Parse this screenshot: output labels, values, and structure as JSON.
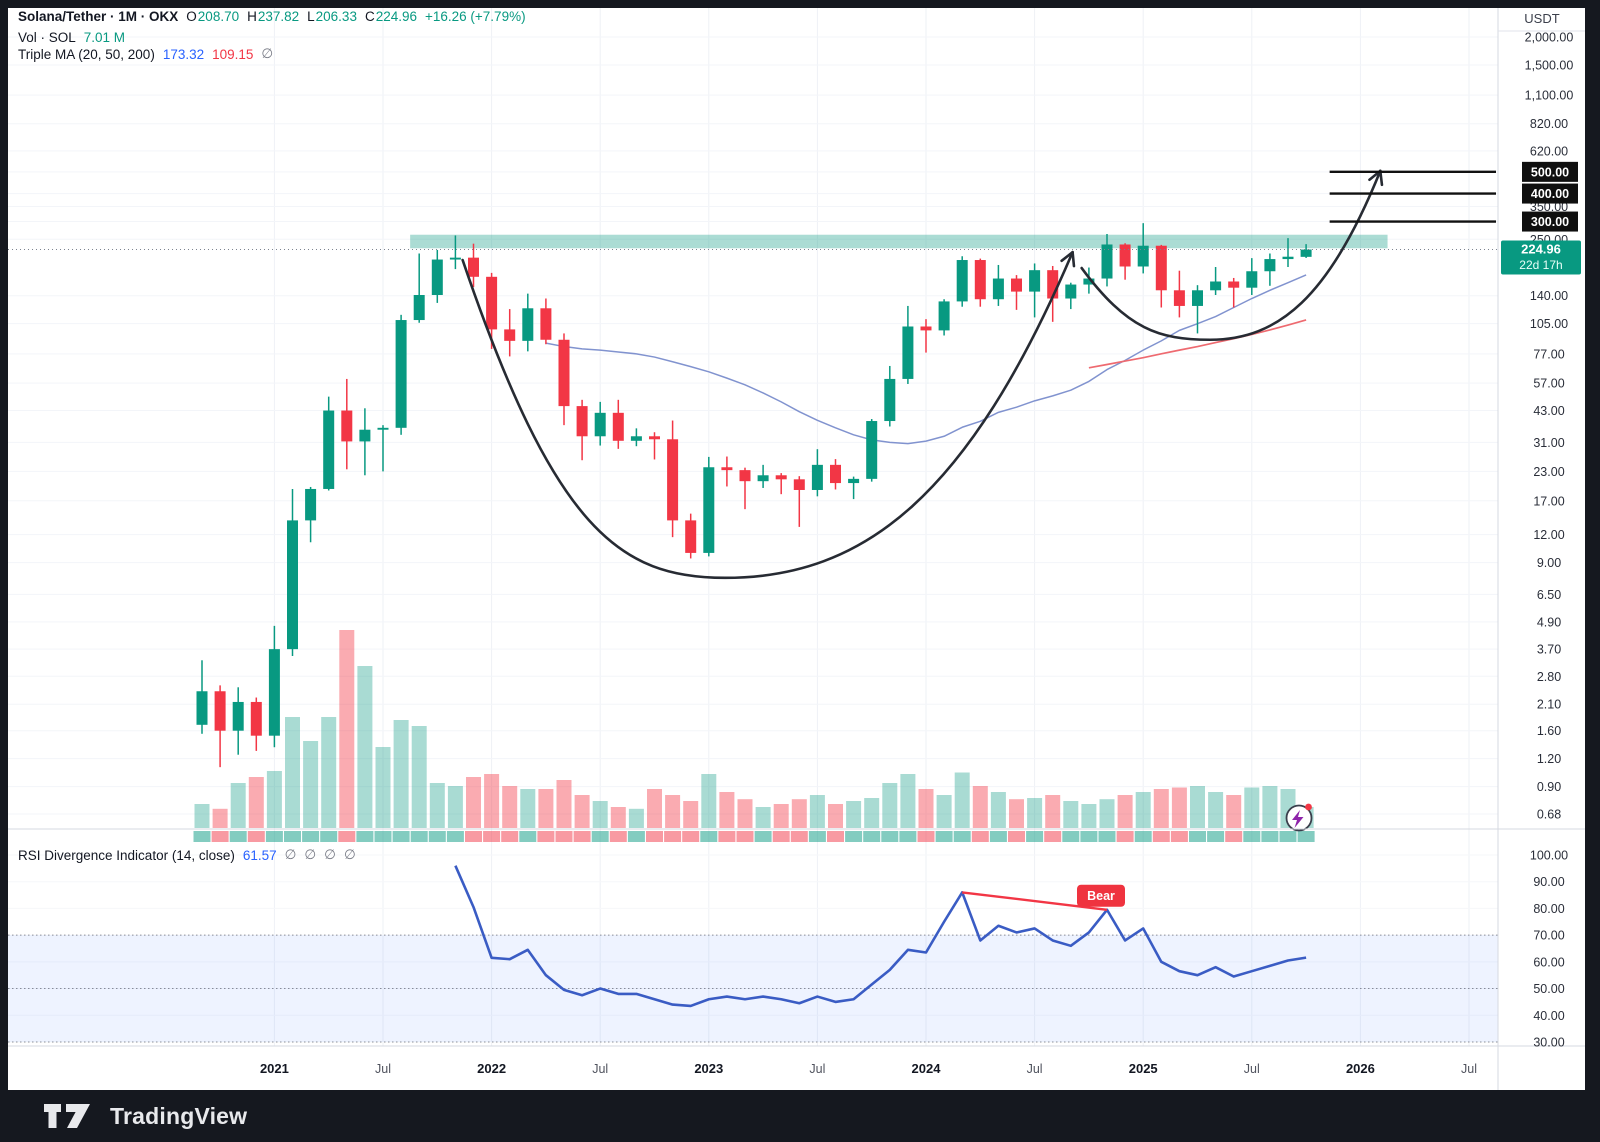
{
  "header": {
    "symbol_line": {
      "title": "Solana/Tether · 1M · OKX",
      "o_label": "O",
      "o_value": "208.70",
      "h_label": "H",
      "h_value": "237.82",
      "l_label": "L",
      "l_value": "206.33",
      "c_label": "C",
      "c_value": "224.96",
      "change": "+16.26 (+7.79%)"
    },
    "volume_line": {
      "label": "Vol · SOL",
      "value": "7.01 M"
    },
    "ma_line": {
      "label": "Triple MA (20, 50, 200)",
      "ma20": "173.32",
      "ma50": "109.15",
      "ma200": "∅"
    }
  },
  "rsi_pane": {
    "legend_label": "RSI Divergence Indicator (14, close)",
    "legend_value": "61.57",
    "empty_values": [
      "∅",
      "∅",
      "∅",
      "∅"
    ],
    "bear_label": "Bear",
    "band_high": 70,
    "band_mid": 50,
    "band_low": 30,
    "axis_ticks": [
      {
        "v": 100,
        "label": "100.00"
      },
      {
        "v": 90,
        "label": "90.00"
      },
      {
        "v": 80,
        "label": "80.00"
      },
      {
        "v": 70,
        "label": "70.00"
      },
      {
        "v": 60,
        "label": "60.00"
      },
      {
        "v": 50,
        "label": "50.00"
      },
      {
        "v": 40,
        "label": "40.00"
      },
      {
        "v": 30,
        "label": "30.00"
      }
    ]
  },
  "price_axis": {
    "currency": "USDT",
    "ticks": [
      {
        "v": 2000,
        "label": "2,000.00"
      },
      {
        "v": 1500,
        "label": "1,500.00"
      },
      {
        "v": 1100,
        "label": "1,100.00"
      },
      {
        "v": 820,
        "label": "820.00"
      },
      {
        "v": 620,
        "label": "620.00"
      },
      {
        "v": 350,
        "label": "350.00"
      },
      {
        "v": 250,
        "label": "250.00"
      },
      {
        "v": 140,
        "label": "140.00"
      },
      {
        "v": 105,
        "label": "105.00"
      },
      {
        "v": 77,
        "label": "77.00"
      },
      {
        "v": 57,
        "label": "57.00"
      },
      {
        "v": 43,
        "label": "43.00"
      },
      {
        "v": 31,
        "label": "31.00"
      },
      {
        "v": 23,
        "label": "23.00"
      },
      {
        "v": 17,
        "label": "17.00"
      },
      {
        "v": 12,
        "label": "12.00"
      },
      {
        "v": 9,
        "label": "9.00"
      },
      {
        "v": 6.5,
        "label": "6.50"
      },
      {
        "v": 4.9,
        "label": "4.90"
      },
      {
        "v": 3.7,
        "label": "3.70"
      },
      {
        "v": 2.8,
        "label": "2.80"
      },
      {
        "v": 2.1,
        "label": "2.10"
      },
      {
        "v": 1.6,
        "label": "1.60"
      },
      {
        "v": 1.2,
        "label": "1.20"
      },
      {
        "v": 0.9,
        "label": "0.90"
      },
      {
        "v": 0.68,
        "label": "0.68"
      }
    ],
    "badges": [
      {
        "v": 500,
        "label": "500.00"
      },
      {
        "v": 400,
        "label": "400.00"
      },
      {
        "v": 300,
        "label": "300.00"
      }
    ],
    "current": {
      "v": 224.96,
      "label": "224.96",
      "countdown": "22d 17h"
    }
  },
  "time_axis": {
    "ticks": [
      {
        "label": "2021",
        "index": 4,
        "major": true
      },
      {
        "label": "Jul",
        "index": 10,
        "major": false
      },
      {
        "label": "2022",
        "index": 16,
        "major": true
      },
      {
        "label": "Jul",
        "index": 22,
        "major": false
      },
      {
        "label": "2023",
        "index": 28,
        "major": true
      },
      {
        "label": "Jul",
        "index": 34,
        "major": false
      },
      {
        "label": "2024",
        "index": 40,
        "major": true
      },
      {
        "label": "Jul",
        "index": 46,
        "major": false
      },
      {
        "label": "2025",
        "index": 52,
        "major": true
      },
      {
        "label": "Jul",
        "index": 58,
        "major": false
      },
      {
        "label": "2026",
        "index": 64,
        "major": true
      },
      {
        "label": "Jul",
        "index": 70,
        "major": false
      }
    ]
  },
  "footer": {
    "brand": "TradingView"
  },
  "colors": {
    "up": "#089981",
    "down": "#f23645",
    "vol_up": "#089981",
    "vol_down": "#f23645",
    "ma20": "#8193cf",
    "ma50": "#ee6a70",
    "rsi_line": "#3a5cc4",
    "rsi_band_line": "#2a2e39",
    "zone": "#089981",
    "drawing": "#272b33",
    "target_line": "#111111",
    "badge_black": "#0f0f0f",
    "badge_current": "#089981",
    "bear_badge": "#ef333f",
    "axis_text": "#2a2e39",
    "grid": "#eef1f6"
  },
  "chart_data": {
    "type": "candlestick",
    "title": "Solana/Tether 1M OKX with Triple MA, volume and RSI Divergence Indicator",
    "x_axis": "time (monthly)",
    "y_axis": "price USDT (log scale)",
    "months": [
      "2020-09",
      "2020-10",
      "2020-11",
      "2020-12",
      "2021-01",
      "2021-02",
      "2021-03",
      "2021-04",
      "2021-05",
      "2021-06",
      "2021-07",
      "2021-08",
      "2021-09",
      "2021-10",
      "2021-11",
      "2021-12",
      "2022-01",
      "2022-02",
      "2022-03",
      "2022-04",
      "2022-05",
      "2022-06",
      "2022-07",
      "2022-08",
      "2022-09",
      "2022-10",
      "2022-11",
      "2022-12",
      "2023-01",
      "2023-02",
      "2023-03",
      "2023-04",
      "2023-05",
      "2023-06",
      "2023-07",
      "2023-08",
      "2023-09",
      "2023-10",
      "2023-11",
      "2023-12",
      "2024-01",
      "2024-02",
      "2024-03",
      "2024-04",
      "2024-05",
      "2024-06",
      "2024-07",
      "2024-08",
      "2024-09",
      "2024-10",
      "2024-11",
      "2024-12",
      "2025-01",
      "2025-02",
      "2025-03",
      "2025-04",
      "2025-05",
      "2025-06",
      "2025-07",
      "2025-08",
      "2025-09",
      "2025-10"
    ],
    "candles_ohlc": [
      [
        1.7,
        3.3,
        1.55,
        2.4
      ],
      [
        2.4,
        2.55,
        1.1,
        1.6
      ],
      [
        1.6,
        2.5,
        1.25,
        2.15
      ],
      [
        2.15,
        2.25,
        1.3,
        1.52
      ],
      [
        1.52,
        4.7,
        1.35,
        3.7
      ],
      [
        3.7,
        19.2,
        3.45,
        13.9
      ],
      [
        13.9,
        19.6,
        11.1,
        19.2
      ],
      [
        19.2,
        49.6,
        18.9,
        43.0
      ],
      [
        43.0,
        59.5,
        23.5,
        31.3
      ],
      [
        31.3,
        44.0,
        22.1,
        35.3
      ],
      [
        35.3,
        37.0,
        23.0,
        36.0
      ],
      [
        36.0,
        115,
        33.5,
        109
      ],
      [
        109,
        216,
        106,
        141
      ],
      [
        141,
        224,
        130,
        203
      ],
      [
        203,
        260,
        184,
        207
      ],
      [
        207,
        239,
        153,
        170
      ],
      [
        170,
        177,
        81,
        99
      ],
      [
        99,
        122,
        75,
        88
      ],
      [
        88,
        143,
        79,
        123
      ],
      [
        123,
        136,
        85,
        89
      ],
      [
        89,
        95,
        37,
        45
      ],
      [
        45,
        48,
        25.8,
        33
      ],
      [
        33,
        47,
        30,
        42
      ],
      [
        42,
        48,
        29,
        31.5
      ],
      [
        31.5,
        35.8,
        29.8,
        33
      ],
      [
        33,
        34.4,
        26,
        32
      ],
      [
        32,
        38.8,
        11.7,
        13.9
      ],
      [
        13.9,
        14.9,
        9.4,
        9.95
      ],
      [
        9.95,
        26.7,
        9.6,
        24
      ],
      [
        24,
        26.8,
        19.7,
        23.3
      ],
      [
        23.3,
        23.9,
        15.6,
        20.8
      ],
      [
        20.8,
        24.6,
        19.4,
        22.1
      ],
      [
        22.1,
        22.6,
        18.2,
        21.2
      ],
      [
        21.2,
        21.9,
        13.0,
        19.0
      ],
      [
        19.0,
        28.9,
        17.8,
        24.6
      ],
      [
        24.6,
        26.1,
        19.1,
        20.4
      ],
      [
        20.4,
        21.8,
        17.3,
        21.3
      ],
      [
        21.3,
        39.4,
        20.7,
        38.6
      ],
      [
        38.6,
        68.0,
        36.5,
        59.5
      ],
      [
        59.5,
        126,
        56.5,
        102
      ],
      [
        102,
        110,
        78,
        98
      ],
      [
        98,
        135,
        93,
        132
      ],
      [
        132,
        210,
        125,
        202
      ],
      [
        202,
        205,
        125,
        135
      ],
      [
        135,
        192,
        126,
        167
      ],
      [
        167,
        173,
        121,
        146
      ],
      [
        146,
        195,
        112,
        182
      ],
      [
        182,
        190,
        107,
        136
      ],
      [
        136,
        160,
        122,
        157
      ],
      [
        157,
        187,
        143,
        167
      ],
      [
        167,
        264,
        154,
        237
      ],
      [
        237,
        240,
        165,
        189
      ],
      [
        189,
        295,
        176,
        234
      ],
      [
        234,
        236,
        124,
        148
      ],
      [
        148,
        181,
        112,
        126
      ],
      [
        126,
        156,
        95,
        148
      ],
      [
        148,
        188,
        141,
        162
      ],
      [
        162,
        168,
        124,
        152
      ],
      [
        152,
        206,
        141,
        180
      ],
      [
        180,
        216,
        155,
        204
      ],
      [
        204,
        253,
        188,
        209
      ],
      [
        208.7,
        237.82,
        206.33,
        224.96
      ]
    ],
    "volume_msol": [
      8,
      6.4,
      15,
      17,
      19,
      37,
      29,
      37,
      66,
      54,
      27,
      36,
      34,
      15,
      14,
      17,
      18,
      14,
      13,
      13,
      16,
      11,
      9,
      7,
      6.4,
      13,
      11,
      9,
      18,
      12,
      9.6,
      7,
      8,
      9.6,
      11,
      8,
      9,
      10,
      15,
      18,
      13,
      11,
      18.5,
      14,
      12,
      9.6,
      10,
      11,
      9,
      8,
      9.6,
      11,
      12,
      13,
      13.5,
      14,
      12,
      11,
      13.5,
      14,
      13,
      7.01
    ],
    "ma20": {
      "start_index": 19,
      "values": [
        86,
        83,
        81,
        80,
        78.5,
        77,
        74.5,
        71,
        67.5,
        64,
        60,
        56,
        51.5,
        47,
        42.5,
        38.9,
        36,
        33.5,
        31.8,
        31,
        30.6,
        31.4,
        33,
        36.2,
        38.5,
        42.2,
        44.5,
        47.5,
        50,
        53,
        58,
        65.5,
        72,
        80,
        88,
        98,
        105,
        113,
        124,
        136,
        148,
        160,
        173.32
      ]
    },
    "ma50": {
      "start_index": 49,
      "values": [
        66.7,
        69,
        71.5,
        74,
        77,
        80,
        83,
        86.5,
        90,
        94,
        98.5,
        103.5,
        109.15
      ]
    },
    "rsi": {
      "start_index": 14,
      "last": 61.57,
      "values": [
        96,
        80.5,
        61.5,
        61,
        64.5,
        55,
        49.5,
        47.5,
        50,
        48,
        48,
        46,
        44,
        43.5,
        46,
        47,
        46,
        47,
        46,
        44.5,
        47,
        45,
        46,
        51.5,
        57,
        64.5,
        63.5,
        75,
        86,
        68,
        73.5,
        71,
        72.5,
        68,
        66,
        71,
        79.5,
        68,
        72.5,
        60,
        56.5,
        55,
        58,
        54.5,
        56.5,
        58.5,
        60.5,
        61.57
      ]
    },
    "annotations": {
      "resistance_zone": {
        "from_index": 11.5,
        "to_index": 65.5,
        "price_high": 262,
        "price_low": 228
      },
      "price_targets": {
        "values": [
          300,
          400,
          500
        ],
        "from_index": 62.3,
        "to_x_edge": true
      },
      "cup": {
        "start": {
          "i": 14.4,
          "p": 202
        },
        "bottom": {
          "i": 28.9,
          "p": 7.7
        },
        "end": {
          "i": 48.1,
          "p": 219
        }
      },
      "handle": {
        "start": {
          "i": 48.6,
          "p": 186
        },
        "bottom": {
          "i": 55.7,
          "p": 89
        },
        "end": {
          "i": 65.1,
          "p": 505
        }
      },
      "divergence_line": {
        "from": {
          "i": 42,
          "rsi": 86
        },
        "to": {
          "i": 50,
          "rsi": 79.5
        }
      },
      "bear": {
        "i": 50,
        "rsi": 79.5
      },
      "current_price_line": 224.96
    }
  }
}
